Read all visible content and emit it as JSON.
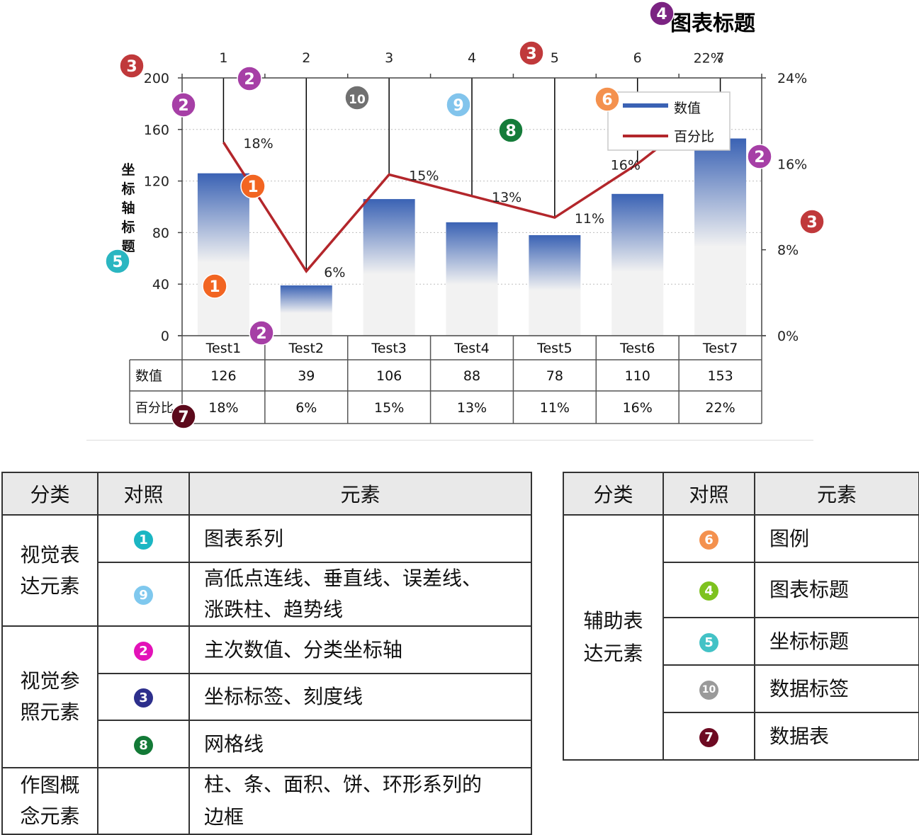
{
  "chart_data": {
    "type": "bar+line",
    "title": "图表标题",
    "ylabel": "坐标轴标题",
    "categories": [
      "Test1",
      "Test2",
      "Test3",
      "Test4",
      "Test5",
      "Test6",
      "Test7"
    ],
    "top_axis_ticks": [
      "1",
      "2",
      "3",
      "4",
      "5",
      "6",
      "7"
    ],
    "y_ticks": [
      "0",
      "40",
      "80",
      "120",
      "160",
      "200"
    ],
    "y2_ticks": [
      "0%",
      "8%",
      "16%",
      "24%"
    ],
    "ylim": [
      0,
      200
    ],
    "y2lim": [
      0,
      24
    ],
    "series": [
      {
        "name": "数值",
        "type": "bar",
        "values": [
          126,
          39,
          106,
          88,
          78,
          110,
          153
        ],
        "labels": [
          "126",
          "39",
          "106",
          "88",
          "78",
          "110",
          "153"
        ]
      },
      {
        "name": "百分比",
        "type": "line",
        "values": [
          18,
          6,
          15,
          13,
          11,
          16,
          22
        ],
        "labels": [
          "18%",
          "6%",
          "15%",
          "13%",
          "11%",
          "16%",
          "22%"
        ]
      }
    ],
    "legend": {
      "placement": "top-right",
      "entries": [
        "数值",
        "百分比"
      ]
    },
    "grid": true,
    "colors": {
      "bar_top": "#3a62b4",
      "bar_bottom": "#f2f2f2",
      "line": "#b3262b"
    }
  },
  "markers": [
    {
      "n": "1",
      "color": "#f26522"
    },
    {
      "n": "1",
      "color": "#f26522"
    },
    {
      "n": "2",
      "color": "#a63fa6"
    },
    {
      "n": "2",
      "color": "#a63fa6"
    },
    {
      "n": "2",
      "color": "#a63fa6"
    },
    {
      "n": "2",
      "color": "#a63fa6"
    },
    {
      "n": "3",
      "color": "#c0393b"
    },
    {
      "n": "3",
      "color": "#c0393b"
    },
    {
      "n": "3",
      "color": "#c0393b"
    },
    {
      "n": "4",
      "color": "#7b2382"
    },
    {
      "n": "5",
      "color": "#2bb6c1"
    },
    {
      "n": "6",
      "color": "#f4914e"
    },
    {
      "n": "7",
      "color": "#5c0a1c"
    },
    {
      "n": "8",
      "color": "#157c3a"
    },
    {
      "n": "9",
      "color": "#82c4ec"
    },
    {
      "n": "10",
      "color": "#707070"
    }
  ],
  "left_table": {
    "headers": [
      "分类",
      "对照",
      "元素"
    ],
    "groups": [
      {
        "category": "视觉表达元素",
        "category_lines": [
          "视觉表",
          "达元素"
        ],
        "rows": [
          {
            "marker": "1",
            "color": "#1bb6c3",
            "text": "图表系列"
          },
          {
            "marker": "9",
            "color": "#7fc8ee",
            "text": "高低点连线、垂直线、误差线、涨跌柱、趋势线",
            "lines": [
              "高低点连线、垂直线、误差线、",
              "涨跌柱、趋势线"
            ]
          }
        ]
      },
      {
        "category": "视觉参照元素",
        "category_lines": [
          "视觉参",
          "照元素"
        ],
        "rows": [
          {
            "marker": "2",
            "color": "#e312b8",
            "text": "主次数值、分类坐标轴"
          },
          {
            "marker": "3",
            "color": "#2d2f8c",
            "text": "坐标标签、刻度线"
          },
          {
            "marker": "8",
            "color": "#137a37",
            "text": "网格线"
          }
        ]
      },
      {
        "category": "作图概念元素",
        "category_lines": [
          "作图概",
          "念元素"
        ],
        "rows": [
          {
            "marker": "",
            "color": "",
            "text": "柱、条、面积、饼、环形系列的边框",
            "lines": [
              "柱、条、面积、饼、环形系列的",
              "边框"
            ]
          }
        ]
      }
    ]
  },
  "right_table": {
    "headers": [
      "分类",
      "对照",
      "元素"
    ],
    "category": "辅助表达元素",
    "category_lines": [
      "辅助表",
      "达元素"
    ],
    "rows": [
      {
        "marker": "6",
        "color": "#f4914e",
        "text": "图例"
      },
      {
        "marker": "4",
        "color": "#7ec21f",
        "text": "图表标题"
      },
      {
        "marker": "5",
        "color": "#43c2c6",
        "text": "坐标标题"
      },
      {
        "marker": "10",
        "color": "#9a9a9a",
        "text": "数据标签"
      },
      {
        "marker": "7",
        "color": "#6d0a22",
        "text": "数据表"
      }
    ]
  }
}
